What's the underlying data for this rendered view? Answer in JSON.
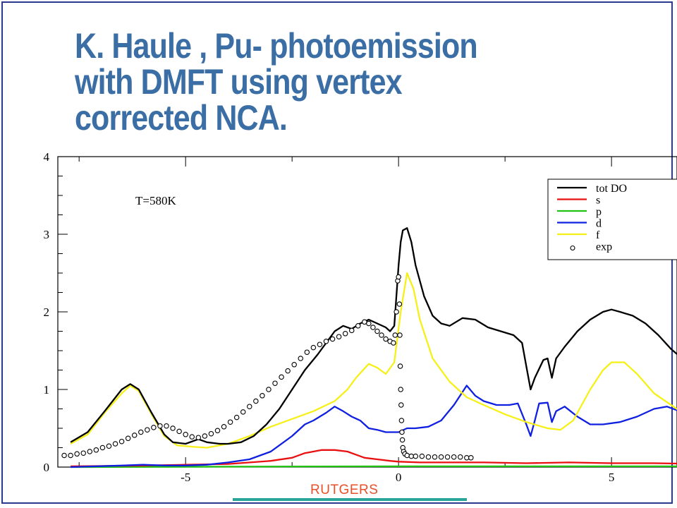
{
  "title_lines": [
    "K. Haule , Pu- photoemission",
    "with DMFT using vertex",
    "corrected NCA."
  ],
  "footer": {
    "label": "RUTGERS"
  },
  "colors": {
    "title": "#3a6ea5",
    "footer_label": "#e8502a",
    "footer_bar": "#2aa59a",
    "frame": "#2b3a8c"
  },
  "chart_data": {
    "type": "line",
    "title": "",
    "xlabel": "",
    "ylabel": "",
    "xlim": [
      -8,
      7.2
    ],
    "ylim": [
      0,
      4
    ],
    "xticks": [
      -5,
      0,
      5
    ],
    "xtick_labels": [
      "-5",
      "0",
      "5"
    ],
    "yticks": [
      0,
      1,
      2,
      3,
      4
    ],
    "ytick_labels": [
      "0",
      "1",
      "2",
      "3",
      "4"
    ],
    "grid": false,
    "legend_position": "top-right",
    "annotation": "T=580K",
    "series": [
      {
        "name": "tot DOS",
        "legend_label": "tot DO",
        "color": "#000000",
        "style": "line",
        "x": [
          -7.7,
          -7.3,
          -6.9,
          -6.5,
          -6.3,
          -6.1,
          -5.8,
          -5.5,
          -5.3,
          -5.0,
          -4.7,
          -4.5,
          -4.2,
          -4.0,
          -3.7,
          -3.4,
          -3.1,
          -2.8,
          -2.5,
          -2.2,
          -1.9,
          -1.7,
          -1.5,
          -1.3,
          -1.1,
          -0.9,
          -0.7,
          -0.5,
          -0.3,
          -0.2,
          -0.1,
          0.0,
          0.05,
          0.1,
          0.2,
          0.3,
          0.4,
          0.6,
          0.8,
          1.0,
          1.2,
          1.5,
          1.8,
          2.1,
          2.4,
          2.7,
          2.9,
          3.0,
          3.1,
          3.2,
          3.4,
          3.5,
          3.6,
          3.7,
          3.9,
          4.2,
          4.5,
          4.8,
          5.0,
          5.2,
          5.5,
          5.8,
          6.1,
          6.4,
          6.7,
          7.0,
          7.2
        ],
        "y": [
          0.32,
          0.45,
          0.72,
          1.0,
          1.07,
          1.0,
          0.7,
          0.42,
          0.32,
          0.3,
          0.36,
          0.32,
          0.3,
          0.3,
          0.32,
          0.4,
          0.55,
          0.75,
          1.0,
          1.25,
          1.45,
          1.6,
          1.75,
          1.82,
          1.78,
          1.85,
          1.9,
          1.85,
          1.8,
          1.75,
          1.82,
          2.6,
          2.9,
          3.05,
          3.08,
          2.9,
          2.6,
          2.2,
          1.95,
          1.85,
          1.82,
          1.92,
          1.9,
          1.8,
          1.75,
          1.7,
          1.6,
          1.3,
          1.0,
          1.15,
          1.38,
          1.4,
          1.15,
          1.4,
          1.55,
          1.75,
          1.9,
          2.0,
          2.03,
          2.0,
          1.95,
          1.85,
          1.7,
          1.52,
          1.38,
          1.28,
          1.22
        ]
      },
      {
        "name": "s",
        "legend_label": "s",
        "color": "#e81010",
        "style": "line",
        "x": [
          -7.7,
          -6,
          -5,
          -4,
          -3,
          -2.5,
          -2.2,
          -2,
          -1.8,
          -1.5,
          -1.2,
          -1,
          -0.8,
          -0.5,
          -0.2,
          0,
          0.5,
          1,
          2,
          3,
          4,
          5,
          6,
          7.2
        ],
        "y": [
          0.01,
          0.02,
          0.03,
          0.04,
          0.08,
          0.12,
          0.18,
          0.2,
          0.22,
          0.22,
          0.2,
          0.16,
          0.12,
          0.1,
          0.08,
          0.07,
          0.06,
          0.06,
          0.06,
          0.05,
          0.06,
          0.05,
          0.05,
          0.04
        ]
      },
      {
        "name": "p",
        "legend_label": "p",
        "color": "#22c414",
        "style": "line",
        "x": [
          -7.7,
          -4,
          0,
          4,
          7.2
        ],
        "y": [
          0.0,
          0.005,
          0.01,
          0.01,
          0.01
        ]
      },
      {
        "name": "d",
        "legend_label": "d",
        "color": "#1020e0",
        "style": "line",
        "x": [
          -7.7,
          -6.5,
          -6,
          -5.5,
          -5,
          -4.5,
          -4,
          -3.5,
          -3,
          -2.5,
          -2.2,
          -2,
          -1.7,
          -1.5,
          -1.3,
          -1.1,
          -0.9,
          -0.7,
          -0.5,
          -0.3,
          -0.1,
          0,
          0.2,
          0.4,
          0.7,
          1,
          1.3,
          1.6,
          1.8,
          2.0,
          2.3,
          2.6,
          2.8,
          3.0,
          3.1,
          3.2,
          3.3,
          3.5,
          3.6,
          3.7,
          3.9,
          4.2,
          4.5,
          4.8,
          5.2,
          5.6,
          6,
          6.3,
          6.6,
          7.2
        ],
        "y": [
          0.0,
          0.02,
          0.03,
          0.02,
          0.02,
          0.03,
          0.06,
          0.1,
          0.2,
          0.4,
          0.55,
          0.6,
          0.7,
          0.78,
          0.72,
          0.65,
          0.6,
          0.5,
          0.48,
          0.45,
          0.45,
          0.45,
          0.5,
          0.5,
          0.52,
          0.6,
          0.8,
          1.05,
          0.92,
          0.85,
          0.8,
          0.8,
          0.82,
          0.55,
          0.4,
          0.6,
          0.82,
          0.83,
          0.58,
          0.72,
          0.78,
          0.65,
          0.55,
          0.55,
          0.58,
          0.65,
          0.75,
          0.78,
          0.72,
          0.65
        ]
      },
      {
        "name": "f",
        "legend_label": "f",
        "color": "#f6f018",
        "style": "line",
        "x": [
          -7.7,
          -7.3,
          -6.9,
          -6.5,
          -6.3,
          -6.1,
          -5.8,
          -5.5,
          -5.2,
          -4.8,
          -4.5,
          -4.0,
          -3.5,
          -3.0,
          -2.5,
          -2.0,
          -1.5,
          -1.2,
          -1.0,
          -0.7,
          -0.5,
          -0.3,
          -0.1,
          0.05,
          0.2,
          0.35,
          0.5,
          0.8,
          1.2,
          1.6,
          2,
          2.5,
          3,
          3.5,
          3.8,
          4.1,
          4.5,
          4.8,
          5.0,
          5.3,
          5.6,
          6,
          6.4,
          6.8,
          7.2
        ],
        "y": [
          0.3,
          0.42,
          0.7,
          0.95,
          1.05,
          0.98,
          0.68,
          0.4,
          0.28,
          0.26,
          0.25,
          0.3,
          0.4,
          0.52,
          0.62,
          0.72,
          0.85,
          1.0,
          1.15,
          1.33,
          1.28,
          1.2,
          1.35,
          2.0,
          2.5,
          2.3,
          1.9,
          1.4,
          1.1,
          0.9,
          0.8,
          0.68,
          0.58,
          0.5,
          0.48,
          0.6,
          1.0,
          1.25,
          1.35,
          1.35,
          1.2,
          0.95,
          0.8,
          0.65,
          0.55
        ]
      },
      {
        "name": "exp",
        "legend_label": "exp",
        "color": "#000000",
        "style": "markers",
        "x": [
          -7.85,
          -7.7,
          -7.55,
          -7.4,
          -7.25,
          -7.1,
          -6.95,
          -6.8,
          -6.65,
          -6.5,
          -6.35,
          -6.2,
          -6.05,
          -5.9,
          -5.75,
          -5.6,
          -5.45,
          -5.3,
          -5.15,
          -5.0,
          -4.85,
          -4.7,
          -4.55,
          -4.4,
          -4.25,
          -4.1,
          -3.95,
          -3.8,
          -3.65,
          -3.5,
          -3.35,
          -3.2,
          -3.05,
          -2.9,
          -2.75,
          -2.6,
          -2.45,
          -2.3,
          -2.15,
          -2.0,
          -1.85,
          -1.7,
          -1.55,
          -1.4,
          -1.25,
          -1.1,
          -0.95,
          -0.8,
          -0.7,
          -0.6,
          -0.5,
          -0.4,
          -0.3,
          -0.2,
          -0.12,
          -0.08,
          -0.05,
          -0.02,
          0.0,
          0.02,
          0.03,
          0.04,
          0.05,
          0.06,
          0.07,
          0.08,
          0.09,
          0.1,
          0.12,
          0.15,
          0.2,
          0.3,
          0.4,
          0.55,
          0.7,
          0.85,
          1.0,
          1.15,
          1.3,
          1.45,
          1.6,
          1.7
        ],
        "y": [
          0.15,
          0.15,
          0.17,
          0.18,
          0.2,
          0.22,
          0.25,
          0.27,
          0.3,
          0.33,
          0.37,
          0.41,
          0.45,
          0.48,
          0.51,
          0.53,
          0.53,
          0.5,
          0.46,
          0.42,
          0.39,
          0.38,
          0.4,
          0.43,
          0.47,
          0.52,
          0.58,
          0.64,
          0.71,
          0.78,
          0.85,
          0.92,
          1.0,
          1.08,
          1.16,
          1.24,
          1.32,
          1.4,
          1.48,
          1.54,
          1.58,
          1.62,
          1.65,
          1.68,
          1.72,
          1.76,
          1.82,
          1.87,
          1.85,
          1.8,
          1.75,
          1.7,
          1.65,
          1.62,
          1.6,
          1.7,
          2.0,
          2.4,
          2.45,
          2.1,
          1.7,
          1.3,
          1.0,
          0.8,
          0.6,
          0.45,
          0.35,
          0.25,
          0.2,
          0.17,
          0.15,
          0.14,
          0.14,
          0.14,
          0.13,
          0.13,
          0.13,
          0.13,
          0.13,
          0.13,
          0.12,
          0.12
        ]
      }
    ]
  }
}
